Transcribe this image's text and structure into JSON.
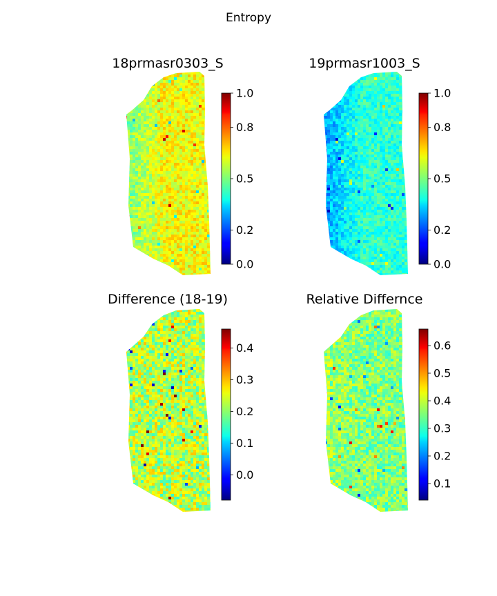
{
  "figure": {
    "suptitle": "Entropy"
  },
  "chart_data": [
    {
      "type": "heatmap",
      "title": "18prmasr0303_S",
      "colormap": "jet",
      "colorbar": {
        "range": [
          0.0,
          1.0
        ],
        "ticks": [
          0.0,
          0.2,
          0.5,
          0.8,
          1.0
        ],
        "tick_labels": [
          "0.0",
          "0.2",
          "0.5",
          "0.8",
          "1.0"
        ]
      },
      "map": {
        "base_value": 0.62,
        "variation": 0.08,
        "west_value": 0.5
      },
      "grid": false
    },
    {
      "type": "heatmap",
      "title": "19prmasr1003_S",
      "colormap": "jet",
      "colorbar": {
        "range": [
          0.0,
          1.0
        ],
        "ticks": [
          0.0,
          0.2,
          0.5,
          0.8,
          1.0
        ],
        "tick_labels": [
          "0.0",
          "0.2",
          "0.5",
          "0.8",
          "1.0"
        ]
      },
      "map": {
        "base_value": 0.42,
        "variation": 0.07,
        "west_value": 0.28
      },
      "grid": false
    },
    {
      "type": "heatmap",
      "title": "Difference (18-19)",
      "colormap": "jet",
      "colorbar": {
        "range": [
          -0.08,
          0.46
        ],
        "ticks": [
          0.0,
          0.1,
          0.2,
          0.3,
          0.4
        ],
        "tick_labels": [
          "0.0",
          "0.1",
          "0.2",
          "0.3",
          "0.4"
        ]
      },
      "map": {
        "base_value": 0.22,
        "variation": 0.07,
        "west_value": 0.22
      },
      "grid": false
    },
    {
      "type": "heatmap",
      "title": "Relative Differnce",
      "colormap": "jet",
      "colorbar": {
        "range": [
          0.04,
          0.66
        ],
        "ticks": [
          0.1,
          0.2,
          0.3,
          0.4,
          0.5,
          0.6
        ],
        "tick_labels": [
          "0.1",
          "0.2",
          "0.3",
          "0.4",
          "0.5",
          "0.6"
        ]
      },
      "map": {
        "base_value": 0.35,
        "variation": 0.06,
        "west_value": 0.37
      },
      "grid": false
    }
  ]
}
